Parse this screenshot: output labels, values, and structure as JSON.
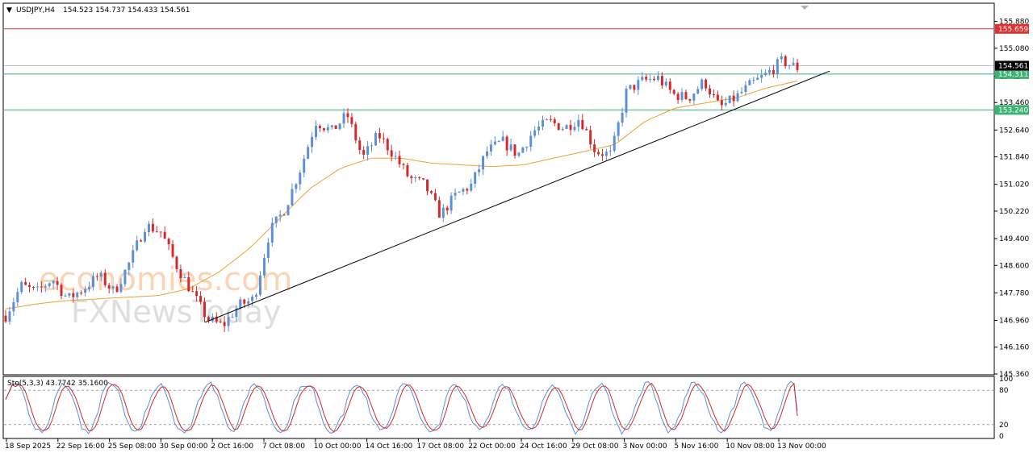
{
  "chart_data": {
    "type": "candlestick",
    "symbol": "USDJPY,H4",
    "ohlc_header": "154.523 154.737 154.433 154.561",
    "price_axis": {
      "min": 145.36,
      "max": 156.4,
      "ticks": [
        "155.880",
        "155.080",
        "154.240",
        "153.460",
        "152.640",
        "151.840",
        "151.020",
        "150.220",
        "149.400",
        "148.600",
        "147.780",
        "146.960",
        "146.160",
        "145.360"
      ]
    },
    "x_labels": [
      "18 Sep 2025",
      "22 Sep 16:00",
      "25 Sep 08:00",
      "30 Sep 00:00",
      "2 Oct 16:00",
      "7 Oct 08:00",
      "10 Oct 00:00",
      "14 Oct 16:00",
      "17 Oct 08:00",
      "22 Oct 00:00",
      "24 Oct 16:00",
      "29 Oct 08:00",
      "3 Nov 00:00",
      "5 Nov 16:00",
      "10 Nov 08:00",
      "13 Nov 00:00"
    ],
    "levels": [
      {
        "price": 155.659,
        "label": "155.659",
        "color": "#e03030"
      },
      {
        "price": 154.311,
        "label": "154.311",
        "color": "#3cb371"
      },
      {
        "price": 153.24,
        "label": "153.240",
        "color": "#3cb371"
      }
    ],
    "current_price": {
      "price": 154.561,
      "label": "154.561",
      "color": "#000000"
    },
    "trendline": {
      "start_price": 146.9,
      "end_price": 154.4,
      "color": "#000000"
    },
    "moving_average_color": "#f0a030",
    "bull_color": "#5b8fd6",
    "bear_color": "#d62828",
    "close_path": [
      147.1,
      148.0,
      147.8,
      148.2,
      147.6,
      147.9,
      148.3,
      147.8,
      148.7,
      149.8,
      149.6,
      148.6,
      147.8,
      147.0,
      146.8,
      147.4,
      147.6,
      149.6,
      150.3,
      151.5,
      152.9,
      152.6,
      153.1,
      151.8,
      152.5,
      151.9,
      151.2,
      151.0,
      150.1,
      150.7,
      151.0,
      152.0,
      152.3,
      151.9,
      152.6,
      152.9,
      152.7,
      153.0,
      152.0,
      151.9,
      153.8,
      154.1,
      154.2,
      153.7,
      153.6,
      154.1,
      153.3,
      153.6,
      154.0,
      154.3,
      154.7,
      154.5
    ],
    "moving_average_path": [
      147.3,
      147.45,
      147.55,
      147.6,
      147.65,
      147.7,
      147.9,
      148.4,
      149.1,
      150.0,
      150.9,
      151.5,
      151.8,
      151.8,
      151.65,
      151.6,
      151.55,
      151.6,
      151.8,
      152.0,
      152.2,
      152.9,
      153.3,
      153.45,
      153.6,
      153.9,
      154.1
    ],
    "stochastic": {
      "label": "Sto(5,3,3) 43.7742 35.1600",
      "main_value": 43.7742,
      "signal_value": 35.16,
      "levels": [
        80,
        20
      ],
      "ticks": [
        "100",
        "80",
        "20",
        "0"
      ],
      "main_color": "#5b8fd6",
      "signal_color": "#d62828"
    },
    "watermark": [
      "economies.com",
      "FXNewsToday"
    ]
  }
}
